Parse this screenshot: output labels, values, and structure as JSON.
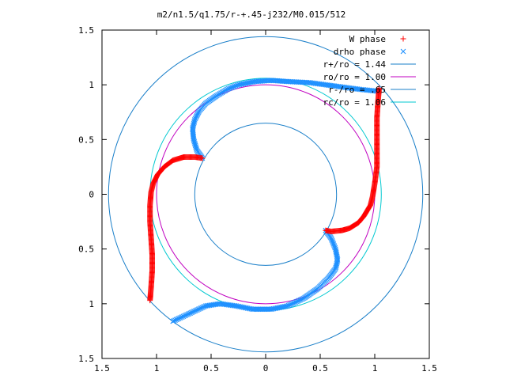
{
  "chart_data": {
    "type": "scatter",
    "title": "m2/n1.5/q1.75/r-+.45-j232/M0.015/512",
    "xlabel": "",
    "ylabel": "",
    "xlim": [
      -1.5,
      1.5
    ],
    "ylim": [
      -1.5,
      1.5
    ],
    "x_tick_labels": [
      "1.5",
      "1",
      "0.5",
      "0",
      "0.5",
      "1",
      "1.5"
    ],
    "x_tick_values": [
      -1.5,
      -1,
      -0.5,
      0,
      0.5,
      1,
      1.5
    ],
    "y_tick_labels": [
      "1.5",
      "1",
      "0.5",
      "0",
      "0.5",
      "1",
      "1.5"
    ],
    "y_tick_values": [
      1.5,
      1,
      0.5,
      0,
      -0.5,
      -1,
      -1.5
    ],
    "grid": false,
    "legend_position": "top-right",
    "colors": {
      "w_phase": "#ff0000",
      "drho_phase": "#1e90ff",
      "r_plus": "#1a7fc9",
      "r_o": "#c000c0",
      "r_minus": "#1a7fc9",
      "r_c": "#00c8d0"
    },
    "series": [
      {
        "name": "W phase",
        "marker": "+",
        "arms": [
          [
            [
              1.04,
              0.97
            ],
            [
              1.03,
              0.85
            ],
            [
              1.02,
              0.7
            ],
            [
              1.02,
              0.55
            ],
            [
              1.02,
              0.4
            ],
            [
              1.02,
              0.25
            ],
            [
              1.0,
              0.1
            ],
            [
              0.98,
              -0.02
            ],
            [
              0.96,
              -0.1
            ],
            [
              0.9,
              -0.2
            ],
            [
              0.85,
              -0.26
            ],
            [
              0.77,
              -0.31
            ],
            [
              0.7,
              -0.33
            ],
            [
              0.6,
              -0.34
            ],
            [
              0.55,
              -0.33
            ]
          ],
          [
            [
              -1.06,
              -0.97
            ],
            [
              -1.05,
              -0.85
            ],
            [
              -1.04,
              -0.7
            ],
            [
              -1.04,
              -0.55
            ],
            [
              -1.05,
              -0.4
            ],
            [
              -1.06,
              -0.25
            ],
            [
              -1.06,
              -0.1
            ],
            [
              -1.05,
              0.02
            ],
            [
              -1.03,
              0.1
            ],
            [
              -0.99,
              0.18
            ],
            [
              -0.93,
              0.25
            ],
            [
              -0.85,
              0.31
            ],
            [
              -0.75,
              0.34
            ],
            [
              -0.65,
              0.34
            ],
            [
              -0.58,
              0.33
            ]
          ]
        ]
      },
      {
        "name": "drho phase",
        "marker": "x",
        "arms": [
          [
            [
              0.55,
              -0.33
            ],
            [
              0.6,
              -0.4
            ],
            [
              0.64,
              -0.5
            ],
            [
              0.66,
              -0.6
            ],
            [
              0.64,
              -0.68
            ],
            [
              0.58,
              -0.76
            ],
            [
              0.48,
              -0.86
            ],
            [
              0.35,
              -0.95
            ],
            [
              0.2,
              -1.02
            ],
            [
              0.05,
              -1.05
            ],
            [
              -0.12,
              -1.05
            ],
            [
              -0.27,
              -1.02
            ],
            [
              -0.42,
              -1.0
            ],
            [
              -0.55,
              -1.02
            ],
            [
              -0.7,
              -1.09
            ],
            [
              -0.85,
              -1.16
            ]
          ],
          [
            [
              -0.58,
              0.33
            ],
            [
              -0.63,
              0.4
            ],
            [
              -0.66,
              0.5
            ],
            [
              -0.67,
              0.6
            ],
            [
              -0.65,
              0.68
            ],
            [
              -0.61,
              0.76
            ],
            [
              -0.55,
              0.83
            ],
            [
              -0.45,
              0.9
            ],
            [
              -0.35,
              0.96
            ],
            [
              -0.25,
              1.0
            ],
            [
              -0.1,
              1.03
            ],
            [
              0.05,
              1.04
            ],
            [
              0.2,
              1.03
            ],
            [
              0.4,
              1.02
            ],
            [
              0.55,
              1.0
            ],
            [
              0.7,
              0.98
            ],
            [
              0.85,
              0.96
            ],
            [
              1.04,
              0.94
            ]
          ]
        ]
      },
      {
        "name": "r+/ro = 1.44",
        "kind": "circle",
        "radius": 1.44
      },
      {
        "name": "ro/ro = 1.00",
        "kind": "circle",
        "radius": 1.0
      },
      {
        "name": "r-/ro = .65",
        "kind": "circle",
        "radius": 0.65
      },
      {
        "name": "rc/ro = 1.06",
        "kind": "circle",
        "radius": 1.06
      }
    ]
  }
}
